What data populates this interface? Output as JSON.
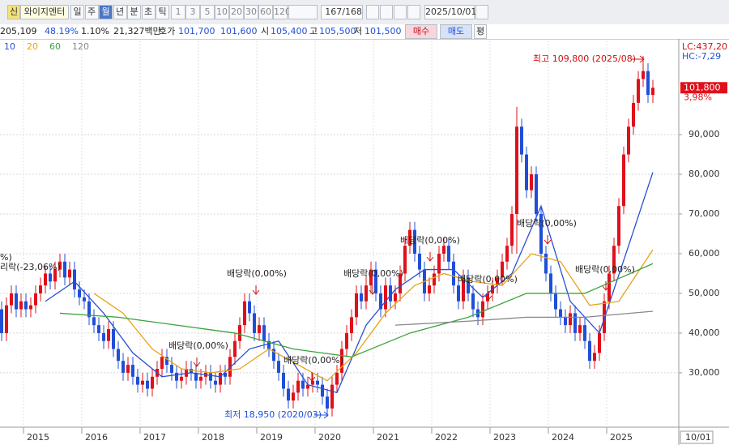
{
  "toolbar": {
    "badge": "신",
    "stock_name": "와이지엔터",
    "periods": [
      "일",
      "주",
      "월",
      "년",
      "분",
      "초",
      "틱"
    ],
    "selected_period": 2,
    "intervals": [
      "1",
      "3",
      "5",
      "10",
      "20",
      "30",
      "60",
      "120"
    ],
    "count": "167/168",
    "date": "2025/10/01"
  },
  "quote": {
    "volume": "205,109",
    "volume_ratio": "48.19%",
    "turnover_ratio": "1.10%",
    "amount": "21,327백만",
    "bid_label": "호가",
    "bid1": "101,700",
    "bid2": "101,600",
    "open_label": "시",
    "open": "105,400",
    "high_label": "고",
    "high": "105,500",
    "low_label": "저",
    "low": "101,500",
    "buy": "매수",
    "sell": "매도",
    "avg": "평"
  },
  "chart_data": {
    "type": "candlestick",
    "up_color": "#e0101a",
    "down_color": "#1f4fd8",
    "categories": [
      null,
      null,
      null,
      null,
      null,
      "2015",
      null,
      null,
      null,
      null,
      null,
      null,
      null,
      null,
      null,
      null,
      null,
      "2016",
      null,
      null,
      null,
      null,
      null,
      null,
      null,
      null,
      null,
      null,
      null,
      "2017",
      null,
      null,
      null,
      null,
      null,
      null,
      null,
      null,
      null,
      null,
      null,
      "2018",
      null,
      null,
      null,
      null,
      null,
      null,
      null,
      null,
      null,
      null,
      null,
      "2019",
      null,
      null,
      null,
      null,
      null,
      null,
      null,
      null,
      null,
      null,
      null,
      "2020",
      null,
      null,
      null,
      null,
      null,
      null,
      null,
      null,
      null,
      null,
      null,
      "2021",
      null,
      null,
      null,
      null,
      null,
      null,
      null,
      null,
      null,
      null,
      null,
      "2022",
      null,
      null,
      null,
      null,
      null,
      null,
      null,
      null,
      null,
      null,
      null,
      "2023",
      null,
      null,
      null,
      null,
      null,
      null,
      null,
      null,
      null,
      null,
      null,
      "2024",
      null,
      null,
      null,
      null,
      null,
      null,
      null,
      null,
      null,
      null,
      null,
      "2025",
      null,
      null,
      null,
      null,
      null,
      null,
      null,
      null,
      null
    ],
    "candles": {
      "open": [
        46000,
        40000,
        47000,
        50000,
        46000,
        48000,
        46000,
        47000,
        50000,
        52000,
        55000,
        53000,
        56000,
        58000,
        54000,
        56000,
        51000,
        49000,
        48000,
        44000,
        42000,
        40000,
        38000,
        41000,
        36000,
        33000,
        30000,
        32000,
        29000,
        27000,
        28000,
        26000,
        29000,
        31000,
        34000,
        32000,
        30000,
        28000,
        29000,
        31000,
        30000,
        28000,
        29000,
        30000,
        28000,
        27000,
        30000,
        29000,
        34000,
        38000,
        42000,
        48000,
        45000,
        40000,
        42000,
        38000,
        36000,
        33000,
        30000,
        26000,
        23000,
        25000,
        28000,
        26000,
        27000,
        28000,
        27000,
        24000,
        21000,
        27000,
        30000,
        36000,
        40000,
        44000,
        50000,
        48000,
        52000,
        56000,
        50000,
        46000,
        52000,
        48000,
        50000,
        55000,
        62000,
        66000,
        60000,
        56000,
        50000,
        52000,
        55000,
        60000,
        62000,
        58000,
        52000,
        48000,
        54000,
        50000,
        46000,
        44000,
        48000,
        50000,
        52000,
        54000,
        58000,
        62000,
        70000,
        92000,
        85000,
        76000,
        80000,
        70000,
        60000,
        55000,
        50000,
        46000,
        44000,
        42000,
        45000,
        40000,
        42000,
        38000,
        33000,
        35000,
        40000,
        48000,
        55000,
        62000,
        72000,
        85000,
        92000,
        98000,
        104000,
        106000,
        100000
      ],
      "high": [
        48000,
        49000,
        52000,
        52000,
        50000,
        50000,
        49000,
        52000,
        54000,
        57000,
        57000,
        58000,
        60000,
        60000,
        58000,
        58000,
        53000,
        51000,
        50000,
        46000,
        44000,
        42000,
        43000,
        43000,
        38000,
        35000,
        34000,
        34000,
        31000,
        30000,
        30000,
        31000,
        33000,
        36000,
        36000,
        34000,
        32000,
        31000,
        33000,
        33000,
        32000,
        31000,
        32000,
        32000,
        30000,
        32000,
        32000,
        36000,
        40000,
        44000,
        50000,
        50000,
        47000,
        44000,
        44000,
        40000,
        38000,
        35000,
        32000,
        28000,
        27000,
        30000,
        30000,
        29000,
        30000,
        30000,
        29000,
        26000,
        29000,
        32000,
        38000,
        42000,
        46000,
        52000,
        52000,
        54000,
        58000,
        58000,
        52000,
        54000,
        54000,
        52000,
        57000,
        64000,
        68000,
        68000,
        62000,
        58000,
        54000,
        57000,
        62000,
        64000,
        64000,
        60000,
        54000,
        56000,
        56000,
        52000,
        48000,
        50000,
        52000,
        54000,
        56000,
        60000,
        64000,
        72000,
        97000,
        94000,
        87000,
        82000,
        82000,
        72000,
        62000,
        57000,
        52000,
        48000,
        46000,
        47000,
        47000,
        44000,
        44000,
        40000,
        37000,
        42000,
        50000,
        57000,
        64000,
        74000,
        87000,
        94000,
        100000,
        106000,
        109800,
        108000,
        103800
      ],
      "low": [
        38000,
        38000,
        45000,
        44000,
        44000,
        44000,
        44000,
        45000,
        48000,
        50000,
        51000,
        51000,
        54000,
        52000,
        52000,
        49000,
        47000,
        46000,
        42000,
        40000,
        38000,
        36000,
        36000,
        34000,
        31000,
        28000,
        28000,
        27000,
        25000,
        25000,
        24000,
        24000,
        27000,
        29000,
        30000,
        28000,
        26000,
        26000,
        27000,
        28000,
        26000,
        26000,
        27000,
        26000,
        25000,
        25000,
        27000,
        27000,
        32000,
        36000,
        40000,
        43000,
        38000,
        38000,
        36000,
        34000,
        31000,
        28000,
        24000,
        21000,
        21000,
        23000,
        24000,
        24000,
        25000,
        25000,
        22000,
        18950,
        19000,
        25000,
        28000,
        34000,
        38000,
        42000,
        46000,
        46000,
        50000,
        48000,
        44000,
        44000,
        46000,
        46000,
        48000,
        53000,
        60000,
        58000,
        54000,
        48000,
        48000,
        50000,
        53000,
        58000,
        56000,
        50000,
        46000,
        46000,
        48000,
        44000,
        42000,
        42000,
        46000,
        48000,
        50000,
        52000,
        56000,
        60000,
        60000,
        83000,
        74000,
        74000,
        68000,
        58000,
        53000,
        48000,
        44000,
        42000,
        40000,
        40000,
        38000,
        38000,
        36000,
        31000,
        31000,
        33000,
        38000,
        46000,
        53000,
        60000,
        70000,
        83000,
        90000,
        96000,
        102000,
        98000,
        98000
      ],
      "close": [
        40000,
        47000,
        50000,
        46000,
        48000,
        46000,
        47000,
        50000,
        52000,
        55000,
        53000,
        56000,
        58000,
        54000,
        56000,
        51000,
        49000,
        48000,
        44000,
        42000,
        40000,
        38000,
        41000,
        36000,
        33000,
        30000,
        32000,
        29000,
        27000,
        28000,
        26000,
        29000,
        31000,
        34000,
        32000,
        30000,
        28000,
        29000,
        31000,
        30000,
        28000,
        29000,
        30000,
        28000,
        27000,
        30000,
        29000,
        34000,
        38000,
        42000,
        48000,
        45000,
        40000,
        42000,
        38000,
        36000,
        33000,
        30000,
        26000,
        23000,
        25000,
        28000,
        26000,
        27000,
        28000,
        27000,
        24000,
        21000,
        27000,
        30000,
        36000,
        40000,
        44000,
        50000,
        48000,
        52000,
        56000,
        50000,
        46000,
        52000,
        48000,
        50000,
        55000,
        62000,
        66000,
        60000,
        56000,
        50000,
        52000,
        55000,
        60000,
        62000,
        58000,
        52000,
        48000,
        54000,
        50000,
        46000,
        44000,
        48000,
        50000,
        52000,
        54000,
        58000,
        62000,
        70000,
        92000,
        85000,
        76000,
        80000,
        70000,
        60000,
        55000,
        50000,
        46000,
        44000,
        42000,
        45000,
        40000,
        42000,
        38000,
        33000,
        35000,
        40000,
        48000,
        55000,
        62000,
        72000,
        85000,
        92000,
        98000,
        104000,
        106000,
        100000,
        101800
      ]
    },
    "series": [
      {
        "name": "10",
        "color": "#2a4fd6",
        "x": [
          9,
          15,
          21,
          27,
          33,
          39,
          45,
          51,
          57,
          63,
          69,
          75,
          81,
          87,
          93,
          99,
          105,
          111,
          117,
          123,
          129,
          134
        ],
        "values": [
          48000,
          53000,
          45000,
          35000,
          29000,
          30000,
          29000,
          36000,
          38000,
          27000,
          25000,
          42000,
          51000,
          56000,
          56000,
          49000,
          55000,
          72000,
          48000,
          40000,
          62000,
          80500
        ]
      },
      {
        "name": "20",
        "color": "#e8a317",
        "x": [
          19,
          25,
          31,
          37,
          43,
          49,
          55,
          61,
          67,
          73,
          79,
          85,
          91,
          97,
          103,
          109,
          115,
          121,
          127,
          134
        ],
        "values": [
          50000,
          45000,
          36000,
          31000,
          30000,
          31000,
          36000,
          32000,
          28000,
          35000,
          45000,
          52000,
          55000,
          53000,
          52000,
          60000,
          58000,
          47000,
          48000,
          61000
        ]
      },
      {
        "name": "60",
        "color": "#3aa33a",
        "x": [
          12,
          24,
          36,
          48,
          60,
          72,
          84,
          96,
          108,
          120,
          134
        ],
        "values": [
          45000,
          44000,
          42000,
          40000,
          36000,
          34000,
          40000,
          44000,
          50000,
          50000,
          57500
        ]
      },
      {
        "name": "120",
        "color": "#888888",
        "x": [
          81,
          96,
          108,
          120,
          134
        ],
        "values": [
          42000,
          43000,
          44000,
          44000,
          45500
        ]
      }
    ],
    "ylim": [
      16300,
      113700
    ],
    "yticks": [
      {
        "value": 30000,
        "label": "30,000"
      },
      {
        "value": 40000,
        "label": "40,000"
      },
      {
        "value": 50000,
        "label": "50,000"
      },
      {
        "value": 60000,
        "label": "60,000"
      },
      {
        "value": 70000,
        "label": "70,000"
      },
      {
        "value": 80000,
        "label": "80,000"
      },
      {
        "value": 90000,
        "label": "90,000"
      }
    ],
    "grid": true,
    "last_price": {
      "value": 101800,
      "label": "101,800"
    },
    "change": "3,98%",
    "lc": "LC:437,20",
    "hc": "HC:-7,29",
    "cursor_date": "10/01",
    "annotations": [
      "최고 109,800 (2025/08)",
      "최저 18,950 (2020/03)",
      "배당락(0,00%)",
      "배당락(0,00%)",
      "배당락(0,00%)",
      "배당락(0,00%)",
      "배당락(0,00%)",
      "배당락(0,00%)",
      "배당락(0,00%)",
      "배당락(0,00%)",
      "리락(-23,06%)",
      "%)"
    ]
  }
}
